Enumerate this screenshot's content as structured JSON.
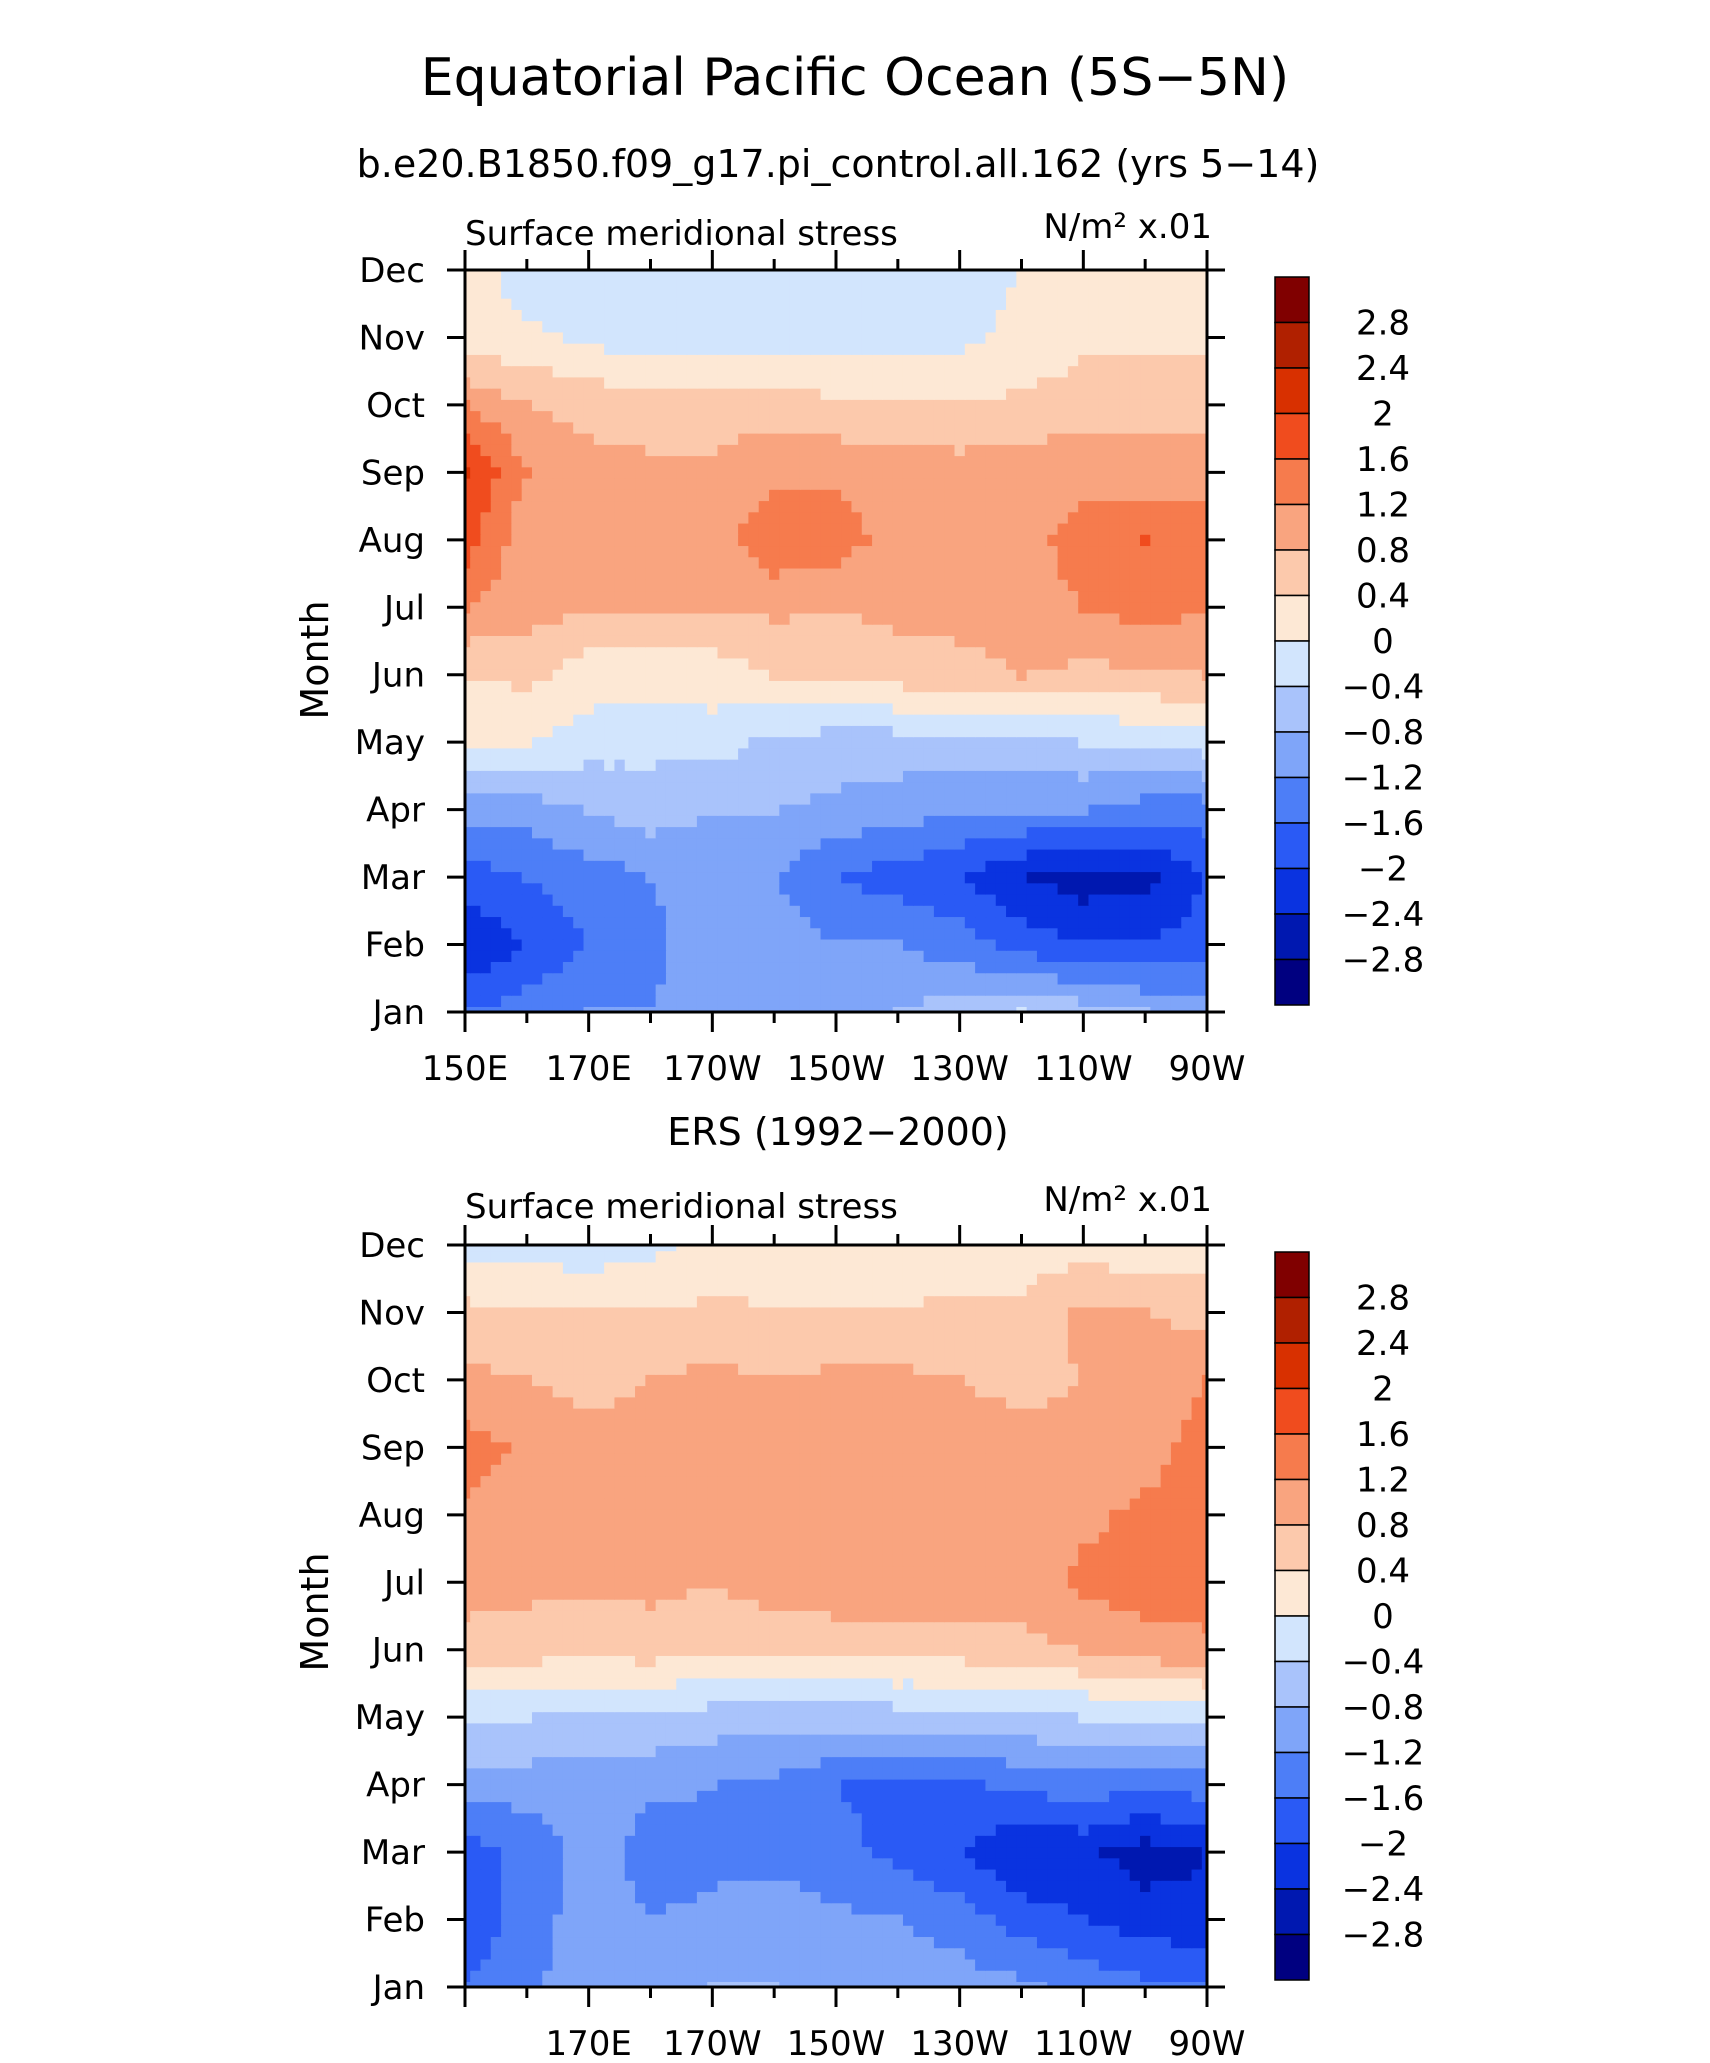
{
  "figure": {
    "title": "Equatorial Pacific Ocean (5S−5N)"
  },
  "chart_data": [
    {
      "type": "heatmap",
      "panel_title": "b.e20.B1850.f09_g17.pi_control.all.162 (yrs 5−14)",
      "left_label": "Surface meridional stress",
      "units_label": "N/m² x.01",
      "ylabel": "Month",
      "xlabel": "",
      "x": [
        "150E",
        "160E",
        "170E",
        "180",
        "170W",
        "160W",
        "150W",
        "140W",
        "130W",
        "120W",
        "110W",
        "100W",
        "90W"
      ],
      "x_tick_labels": [
        "150E",
        "170E",
        "170W",
        "150W",
        "130W",
        "110W",
        "90W"
      ],
      "xlim": [
        "150E",
        "90W"
      ],
      "y": [
        "Jan",
        "Feb",
        "Mar",
        "Apr",
        "May",
        "Jun",
        "Jul",
        "Aug",
        "Sep",
        "Oct",
        "Nov",
        "Dec"
      ],
      "ylim": [
        "Jan",
        "Dec"
      ],
      "z": [
        [
          -1.6,
          -1.4,
          -1.2,
          -1.2,
          -1.0,
          -1.0,
          -1.0,
          -0.8,
          -0.6,
          -0.4,
          -0.6,
          -0.8,
          -1.0
        ],
        [
          -2.4,
          -2.0,
          -1.6,
          -1.3,
          -1.0,
          -1.0,
          -1.2,
          -1.2,
          -1.4,
          -1.8,
          -2.0,
          -2.0,
          -1.8
        ],
        [
          -1.8,
          -1.6,
          -1.4,
          -1.2,
          -1.0,
          -1.2,
          -1.6,
          -1.8,
          -2.0,
          -2.4,
          -2.6,
          -2.5,
          -2.0
        ],
        [
          -1.0,
          -1.0,
          -0.8,
          -0.6,
          -0.8,
          -0.8,
          -0.9,
          -1.0,
          -1.2,
          -1.2,
          -1.2,
          -1.4,
          -1.4
        ],
        [
          0.0,
          0.0,
          -0.2,
          -0.3,
          -0.2,
          -0.5,
          -0.6,
          -0.6,
          -0.5,
          -0.5,
          -0.4,
          -0.3,
          -0.2
        ],
        [
          0.4,
          0.5,
          0.2,
          0.2,
          0.2,
          0.4,
          0.5,
          0.6,
          0.6,
          0.8,
          0.7,
          0.7,
          0.8
        ],
        [
          1.2,
          1.0,
          0.8,
          0.8,
          0.8,
          0.9,
          0.8,
          0.9,
          1.0,
          1.1,
          1.2,
          1.4,
          1.2
        ],
        [
          1.8,
          0.9,
          0.9,
          0.9,
          1.0,
          1.5,
          1.4,
          1.0,
          1.0,
          1.1,
          1.3,
          1.6,
          1.4
        ],
        [
          2.0,
          1.2,
          0.9,
          0.9,
          0.9,
          1.1,
          1.1,
          1.0,
          1.0,
          1.0,
          1.1,
          1.0,
          1.0
        ],
        [
          1.2,
          0.8,
          0.7,
          0.6,
          0.6,
          0.6,
          0.5,
          0.5,
          0.4,
          0.5,
          0.6,
          0.6,
          0.6
        ],
        [
          0.1,
          0.1,
          -0.1,
          -0.2,
          -0.2,
          -0.2,
          -0.2,
          -0.2,
          -0.1,
          0.1,
          0.3,
          0.3,
          0.3
        ],
        [
          0.2,
          -0.2,
          -0.3,
          -0.3,
          -0.3,
          -0.3,
          -0.3,
          -0.3,
          -0.1,
          0.0,
          0.1,
          0.1,
          0.1
        ]
      ],
      "contour_levels": [
        -2.8,
        -2.4,
        -2.0,
        -1.6,
        -1.2,
        -0.8,
        -0.4,
        0,
        0.4,
        0.8,
        1.2,
        1.6,
        2.0,
        2.4,
        2.8
      ],
      "colorbar_labels": [
        "2.8",
        "2.4",
        "2",
        "1.6",
        "1.2",
        "0.8",
        "0.4",
        "0",
        "−0.4",
        "−0.8",
        "−1.2",
        "−1.6",
        "−2",
        "−2.4",
        "−2.8"
      ]
    },
    {
      "type": "heatmap",
      "panel_title": "ERS (1992−2000)",
      "left_label": "Surface meridional stress",
      "units_label": "N/m² x.01",
      "ylabel": "Month",
      "xlabel": "",
      "x": [
        "150E",
        "160E",
        "170E",
        "180",
        "170W",
        "160W",
        "150W",
        "140W",
        "130W",
        "120W",
        "110W",
        "100W",
        "90W"
      ],
      "x_tick_labels": [
        "170E",
        "170W",
        "150W",
        "130W",
        "110W",
        "90W"
      ],
      "xlim": [
        "150E",
        "90W"
      ],
      "y": [
        "Jan",
        "Feb",
        "Mar",
        "Apr",
        "May",
        "Jun",
        "Jul",
        "Aug",
        "Sep",
        "Oct",
        "Nov",
        "Dec"
      ],
      "ylim": [
        "Jan",
        "Dec"
      ],
      "z": [
        [
          -1.6,
          -1.3,
          -0.9,
          -0.9,
          -0.8,
          -0.8,
          -0.9,
          -0.9,
          -1.0,
          -1.1,
          -1.3,
          -1.5,
          -1.6
        ],
        [
          -1.9,
          -1.4,
          -1.0,
          -1.2,
          -1.1,
          -1.0,
          -1.1,
          -1.2,
          -1.4,
          -1.8,
          -2.0,
          -2.2,
          -2.3
        ],
        [
          -1.8,
          -1.5,
          -1.0,
          -1.4,
          -1.3,
          -1.3,
          -1.5,
          -1.7,
          -2.0,
          -2.4,
          -2.3,
          -2.6,
          -2.4
        ],
        [
          -1.0,
          -1.0,
          -1.0,
          -1.1,
          -1.2,
          -1.3,
          -1.6,
          -1.7,
          -1.7,
          -1.5,
          -1.4,
          -1.5,
          -1.4
        ],
        [
          -0.4,
          -0.4,
          -0.5,
          -0.5,
          -0.6,
          -0.6,
          -0.6,
          -0.6,
          -0.6,
          -0.5,
          -0.4,
          -0.3,
          -0.3
        ],
        [
          0.6,
          0.6,
          0.5,
          0.6,
          0.5,
          0.5,
          0.5,
          0.6,
          0.6,
          0.7,
          0.8,
          1.0,
          1.1
        ],
        [
          1.0,
          0.9,
          0.9,
          0.9,
          0.8,
          1.0,
          1.1,
          1.1,
          1.0,
          1.0,
          1.3,
          1.4,
          1.4
        ],
        [
          1.1,
          1.0,
          0.9,
          1.0,
          1.1,
          1.0,
          1.1,
          1.1,
          1.0,
          0.9,
          1.1,
          1.3,
          1.4
        ],
        [
          1.4,
          1.1,
          0.9,
          0.9,
          1.0,
          1.1,
          1.1,
          1.0,
          1.0,
          0.9,
          0.9,
          1.0,
          1.4
        ],
        [
          0.9,
          0.8,
          0.7,
          0.8,
          0.9,
          0.8,
          0.9,
          0.9,
          0.8,
          0.7,
          0.8,
          0.9,
          1.2
        ],
        [
          0.5,
          0.5,
          0.5,
          0.4,
          0.5,
          0.4,
          0.4,
          0.4,
          0.5,
          0.5,
          0.9,
          0.8,
          0.7
        ],
        [
          -0.1,
          -0.2,
          -0.3,
          -0.1,
          0.1,
          0.2,
          0.2,
          0.2,
          0.2,
          0.2,
          0.2,
          0.1,
          0.2
        ]
      ],
      "contour_levels": [
        -2.8,
        -2.4,
        -2.0,
        -1.6,
        -1.2,
        -0.8,
        -0.4,
        0,
        0.4,
        0.8,
        1.2,
        1.6,
        2.0,
        2.4,
        2.8
      ],
      "colorbar_labels": [
        "2.8",
        "2.4",
        "2",
        "1.6",
        "1.2",
        "0.8",
        "0.4",
        "0",
        "−0.4",
        "−0.8",
        "−1.2",
        "−1.6",
        "−2",
        "−2.4",
        "−2.8"
      ]
    }
  ],
  "palette": [
    "#000080",
    "#0018b0",
    "#0a33e0",
    "#2a5af5",
    "#4d7ef7",
    "#7fa5f9",
    "#a9c3fb",
    "#d2e5fd",
    "#fde8d5",
    "#fcc9ac",
    "#f9a47f",
    "#f67b4d",
    "#f04c1e",
    "#d83000",
    "#b02000",
    "#800000"
  ]
}
